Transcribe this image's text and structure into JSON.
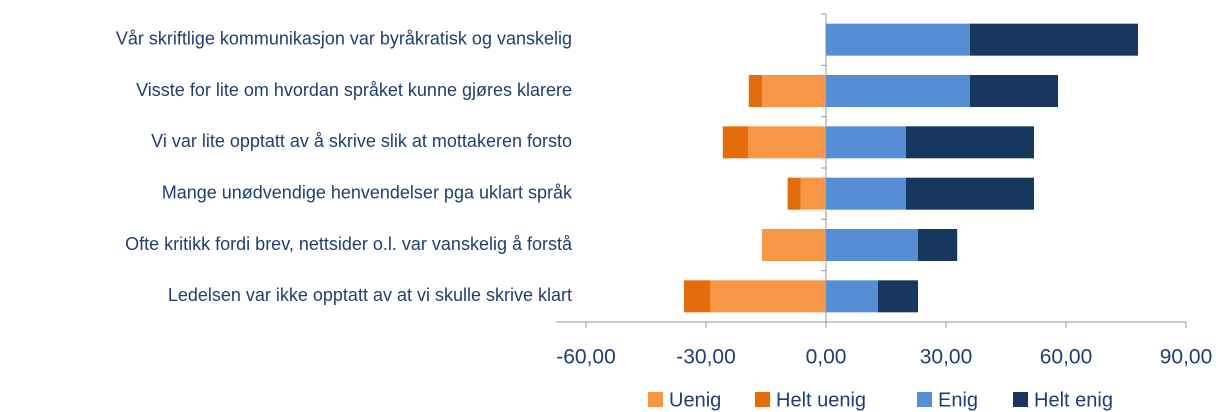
{
  "chart_data": {
    "type": "diverging_bar",
    "categories": [
      "Vår skriftlige kommunikasjon var byråkratisk og vanskelig",
      "Visste for lite om hvordan språket kunne gjøres klarere",
      "Vi var lite opptatt av å skrive slik at mottakeren forsto",
      "Mange unødvendige henvendelser pga uklart språk ",
      "Ofte kritikk  fordi brev, nettsider o.l. var vanskelig å forstå",
      "Ledelsen var ikke opptatt av at vi skulle skrive klart"
    ],
    "series": [
      {
        "name": "Uenig",
        "color": "#f79646",
        "side": "negative",
        "values": [
          0,
          16,
          19.5,
          6.3,
          16,
          29
        ]
      },
      {
        "name": "Helt uenig",
        "color": "#e46c0a",
        "side": "negative",
        "values": [
          0,
          3.3,
          6.3,
          3.3,
          0,
          6.5
        ]
      },
      {
        "name": "Enig",
        "color": "#558ed5",
        "side": "positive",
        "values": [
          36,
          36,
          20,
          20,
          23,
          13
        ]
      },
      {
        "name": "Helt enig",
        "color": "#17375e",
        "side": "positive",
        "values": [
          42,
          22,
          32,
          32,
          9.8,
          10
        ]
      }
    ],
    "xlim": [
      -60,
      90
    ],
    "xticks": [
      {
        "value": -60,
        "label": "-60,00"
      },
      {
        "value": -30,
        "label": "-30,00"
      },
      {
        "value": 0,
        "label": "0,00"
      },
      {
        "value": 30,
        "label": "30,00"
      },
      {
        "value": 60,
        "label": "60,00"
      },
      {
        "value": 90,
        "label": "90,00"
      }
    ],
    "legend": "bottom"
  }
}
